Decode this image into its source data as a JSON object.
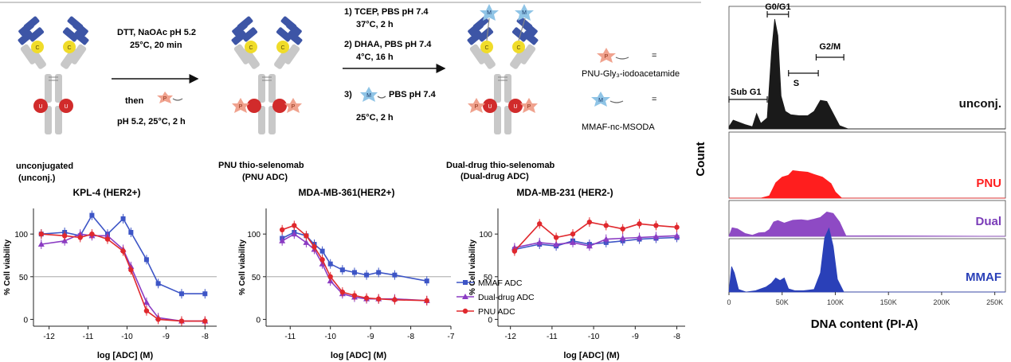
{
  "scheme": {
    "step1": {
      "line1": "DTT, NaOAc pH 5.2",
      "line2": "25°C, 20 min",
      "then": "then",
      "line3": "pH 5.2, 25°C, 2 h"
    },
    "step2": {
      "l1": "1)  TCEP, PBS pH 7.4",
      "l2": "37°C, 2 h",
      "l3": "2)  DHAA, PBS pH 7.4",
      "l4": "4°C, 16 h",
      "l5": "3)",
      "l6": "PBS pH 7.4",
      "l7": "25°C, 2 h"
    },
    "letters": {
      "c": "C",
      "u": "U",
      "p": "P",
      "m": "M"
    },
    "legend": {
      "pnu": "PNU-Gly₃-iodoacetamide",
      "mmaf": "MMAF-nc-MSODA",
      "eq": "="
    },
    "labels": {
      "unconj_1": "unconjugated",
      "unconj_2": "(unconj.)",
      "pnu_1": "PNU thio-selenomab",
      "pnu_2": "(PNU ADC)",
      "dual_1": "Dual-drug thio-selenomab",
      "dual_2": "(Dual-drug ADC)"
    },
    "colors": {
      "heavy": "#3d55a6",
      "chain": "#c8c8c8",
      "cys": "#f0dc2a",
      "sec": "#d12b2b",
      "pnu": "#f0a28e",
      "mmaf": "#8fc4e6"
    }
  },
  "chart_data": [
    {
      "type": "line",
      "title": "KPL-4 (HER2+)",
      "xlabel": "log [ADC] (M)",
      "ylabel": "% Cell viability",
      "xlim": [
        -12.4,
        -7.7
      ],
      "ylim": [
        -8,
        130
      ],
      "xticks": [
        -12,
        -11,
        -10,
        -9,
        -8
      ],
      "yticks": [
        0,
        50,
        100
      ],
      "reference_line": 50,
      "series": [
        {
          "name": "MMAF ADC",
          "color": "#3d55c6",
          "marker": "square",
          "x": [
            -12.2,
            -11.6,
            -11.2,
            -10.9,
            -10.5,
            -10.1,
            -9.9,
            -9.5,
            -9.2,
            -8.6,
            -8.0
          ],
          "y": [
            100,
            102,
            98,
            122,
            100,
            118,
            102,
            70,
            42,
            30,
            30
          ]
        },
        {
          "name": "Dual-drug ADC",
          "color": "#8b3cc3",
          "marker": "triangle",
          "x": [
            -12.2,
            -11.6,
            -11.2,
            -10.9,
            -10.5,
            -10.1,
            -9.9,
            -9.5,
            -9.2,
            -8.6,
            -8.0
          ],
          "y": [
            88,
            92,
            100,
            98,
            98,
            82,
            62,
            20,
            2,
            -2,
            -2
          ]
        },
        {
          "name": "PNU ADC",
          "color": "#e0282d",
          "marker": "circle",
          "x": [
            -12.2,
            -11.6,
            -11.2,
            -10.9,
            -10.5,
            -10.1,
            -9.9,
            -9.5,
            -9.2,
            -8.6,
            -8.0
          ],
          "y": [
            100,
            98,
            96,
            100,
            94,
            80,
            58,
            10,
            0,
            -2,
            -2
          ]
        }
      ]
    },
    {
      "type": "line",
      "title": "MDA-MB-361(HER2+)",
      "xlabel": "log [ADC] (M)",
      "ylabel": "% Cell viability",
      "xlim": [
        -11.6,
        -7.0
      ],
      "ylim": [
        -8,
        130
      ],
      "xticks": [
        -11,
        -10,
        -9,
        -8,
        -7
      ],
      "yticks": [
        0,
        50,
        100
      ],
      "reference_line": 50,
      "series": [
        {
          "name": "MMAF ADC",
          "color": "#3d55c6",
          "marker": "square",
          "x": [
            -11.2,
            -10.9,
            -10.6,
            -10.4,
            -10.2,
            -10.0,
            -9.7,
            -9.4,
            -9.1,
            -8.8,
            -8.4,
            -7.6
          ],
          "y": [
            95,
            102,
            98,
            88,
            80,
            65,
            58,
            55,
            52,
            55,
            52,
            45
          ]
        },
        {
          "name": "Dual-drug ADC",
          "color": "#8b3cc3",
          "marker": "triangle",
          "x": [
            -11.2,
            -10.9,
            -10.6,
            -10.4,
            -10.2,
            -10.0,
            -9.7,
            -9.4,
            -9.1,
            -8.8,
            -8.4,
            -7.6
          ],
          "y": [
            92,
            100,
            90,
            82,
            65,
            45,
            30,
            26,
            24,
            24,
            24,
            22
          ]
        },
        {
          "name": "PNU ADC",
          "color": "#e0282d",
          "marker": "circle",
          "x": [
            -11.2,
            -10.9,
            -10.6,
            -10.4,
            -10.2,
            -10.0,
            -9.7,
            -9.4,
            -9.1,
            -8.8,
            -8.4,
            -7.6
          ],
          "y": [
            105,
            110,
            98,
            85,
            70,
            50,
            32,
            28,
            25,
            24,
            23,
            22
          ]
        }
      ]
    },
    {
      "type": "line",
      "title": "MDA-MB-231 (HER2-)",
      "xlabel": "log [ADC] (M)",
      "ylabel": "% Cell viability",
      "xlim": [
        -12.3,
        -7.8
      ],
      "ylim": [
        -8,
        130
      ],
      "xticks": [
        -12,
        -11,
        -10,
        -9,
        -8
      ],
      "yticks": [
        0,
        50,
        100
      ],
      "series": [
        {
          "name": "MMAF ADC",
          "color": "#3d55c6",
          "marker": "square",
          "x": [
            -11.9,
            -11.3,
            -10.9,
            -10.5,
            -10.1,
            -9.7,
            -9.3,
            -8.9,
            -8.5,
            -8.0
          ],
          "y": [
            82,
            88,
            86,
            92,
            88,
            90,
            92,
            94,
            95,
            96
          ]
        },
        {
          "name": "Dual-drug ADC",
          "color": "#8b3cc3",
          "marker": "triangle",
          "x": [
            -11.9,
            -11.3,
            -10.9,
            -10.5,
            -10.1,
            -9.7,
            -9.3,
            -8.9,
            -8.5,
            -8.0
          ],
          "y": [
            84,
            90,
            88,
            90,
            86,
            94,
            95,
            96,
            97,
            98
          ]
        },
        {
          "name": "PNU ADC",
          "color": "#e0282d",
          "marker": "circle",
          "x": [
            -11.9,
            -11.3,
            -10.9,
            -10.5,
            -10.1,
            -9.7,
            -9.3,
            -8.9,
            -8.5,
            -8.0
          ],
          "y": [
            80,
            112,
            96,
            100,
            114,
            110,
            106,
            112,
            110,
            108
          ]
        }
      ],
      "legend": [
        "MMAF ADC",
        "Dual-drug ADC",
        "PNU ADC"
      ]
    },
    {
      "type": "area",
      "title": "",
      "xlabel": "DNA content (PI-A)",
      "ylabel": "Count",
      "xlim": [
        0,
        260000
      ],
      "xticks": [
        "0",
        "50K",
        "100K",
        "150K",
        "200K",
        "250K"
      ],
      "gates": [
        {
          "label": "Sub G1",
          "from": 0,
          "to": 36000
        },
        {
          "label": "G0/G1",
          "from": 36000,
          "to": 56000
        },
        {
          "label": "S",
          "from": 56000,
          "to": 84000
        },
        {
          "label": "G2/M",
          "from": 82000,
          "to": 108000
        }
      ],
      "series": [
        {
          "name": "unconj.",
          "color": "#1a1a1a",
          "x": [
            0,
            4000,
            15000,
            22000,
            26000,
            30000,
            36000,
            40000,
            43000,
            46000,
            49000,
            53000,
            58000,
            66000,
            74000,
            80000,
            86000,
            92000,
            98000,
            104000,
            112000,
            260000
          ],
          "y": [
            0.02,
            0.08,
            0.04,
            0.02,
            0.14,
            0.05,
            0.1,
            0.7,
            1.0,
            0.85,
            0.3,
            0.16,
            0.13,
            0.12,
            0.12,
            0.16,
            0.26,
            0.25,
            0.14,
            0.03,
            0.0,
            0.0
          ]
        },
        {
          "name": "PNU",
          "color": "#ff1e1e",
          "x": [
            0,
            30000,
            38000,
            44000,
            50000,
            56000,
            60000,
            66000,
            74000,
            80000,
            88000,
            96000,
            100000,
            106000,
            260000
          ],
          "y": [
            0.0,
            0.0,
            0.06,
            0.4,
            0.55,
            0.6,
            0.72,
            0.7,
            0.68,
            0.62,
            0.55,
            0.38,
            0.16,
            0.0,
            0.0
          ]
        },
        {
          "name": "Dual",
          "color": "#8e4ac4",
          "x": [
            0,
            3000,
            8000,
            15000,
            22000,
            28000,
            34000,
            38000,
            42000,
            46000,
            52000,
            60000,
            68000,
            74000,
            80000,
            86000,
            92000,
            98000,
            104000,
            110000,
            260000
          ],
          "y": [
            0.0,
            0.3,
            0.26,
            0.1,
            0.04,
            0.12,
            0.14,
            0.24,
            0.5,
            0.55,
            0.46,
            0.56,
            0.58,
            0.55,
            0.6,
            0.66,
            0.85,
            0.8,
            0.5,
            0.02,
            0.0
          ]
        },
        {
          "name": "MMAF",
          "color": "#2a40b8",
          "x": [
            0,
            2500,
            5000,
            9000,
            16000,
            25000,
            35000,
            40000,
            44000,
            48000,
            52000,
            56000,
            62000,
            70000,
            80000,
            86000,
            90000,
            94000,
            98000,
            102000,
            108000,
            260000
          ],
          "y": [
            0.0,
            0.4,
            0.3,
            0.04,
            0.0,
            0.02,
            0.08,
            0.14,
            0.22,
            0.18,
            0.22,
            0.05,
            0.02,
            0.02,
            0.04,
            0.3,
            0.85,
            1.0,
            0.72,
            0.2,
            0.0,
            0.0
          ]
        }
      ]
    }
  ]
}
